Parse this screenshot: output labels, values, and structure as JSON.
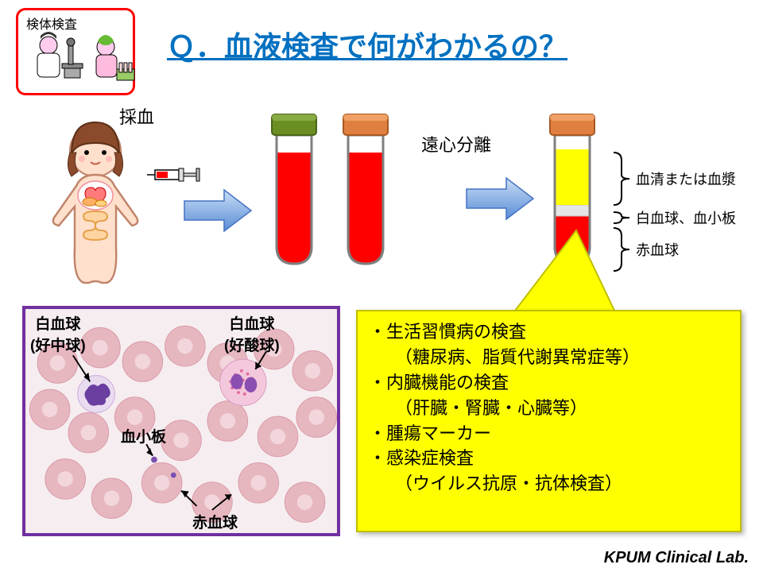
{
  "title": "Ｑ．血液検査で何がわかるの？",
  "badge_label": "検体検査",
  "sample_label": "採血",
  "centrifuge_label": "遠心分離",
  "layers": {
    "plasma": "血清または血漿",
    "buffy": "白血球、血小板",
    "rbc": "赤血球"
  },
  "micro": {
    "wbc_neutro": "白血球\n(好中球)",
    "wbc_eos": "白血球\n(好酸球)",
    "platelet": "血小板",
    "rbc": "赤血球"
  },
  "info": {
    "items": [
      {
        "main": "・生活習慣病の検査",
        "sub": "（糖尿病、脂質代謝異常症等）"
      },
      {
        "main": "・内臓機能の検査",
        "sub": "（肝臓・腎臓・心臓等）"
      },
      {
        "main": "・腫瘍マーカー",
        "sub": ""
      },
      {
        "main": "・感染症検査",
        "sub": "（ウイルス抗原・抗体検査）"
      }
    ]
  },
  "footer": "KPUM Clinical Lab.",
  "colors": {
    "title": "#0070c0",
    "blood_fill": "#ff0000",
    "plasma_fill": "#ffff00",
    "buffy_fill": "#e6e6e6",
    "rbc_fill": "#ff0000",
    "arrow_fill": "#7aa8e6",
    "arrow_stroke": "#4472c4",
    "tube_stroke": "#7f7f7f",
    "green_cap": "#6b8e23",
    "orange_cap": "#e08040",
    "yellow_box": "#ffff00",
    "badge_border": "#ff0000",
    "micro_border": "#7030a0"
  },
  "tubes": {
    "tube1": {
      "cap": "green",
      "contents": "whole"
    },
    "tube2": {
      "cap": "orange",
      "contents": "whole"
    },
    "tube3": {
      "cap": "orange",
      "contents": "separated"
    }
  }
}
